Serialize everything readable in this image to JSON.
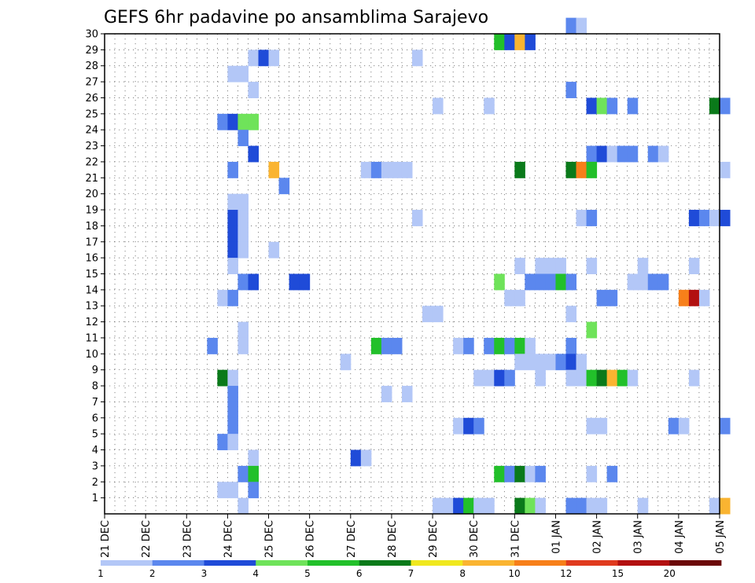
{
  "chart_data": {
    "type": "heatmap",
    "title": "GEFS 6hr padavine po ansamblima Sarajevo",
    "xlabel": "",
    "ylabel": "",
    "y_ticks": [
      "1",
      "2",
      "3",
      "4",
      "5",
      "6",
      "7",
      "8",
      "9",
      "10",
      "11",
      "12",
      "13",
      "14",
      "15",
      "16",
      "17",
      "18",
      "19",
      "20",
      "21",
      "22",
      "23",
      "24",
      "25",
      "26",
      "27",
      "28",
      "29",
      "30"
    ],
    "x_ticks": [
      "21 DEC",
      "22 DEC",
      "23 DEC",
      "24 DEC",
      "25 DEC",
      "26 DEC",
      "27 DEC",
      "28 DEC",
      "29 DEC",
      "30 DEC",
      "31 DEC",
      "01 JAN",
      "02 JAN",
      "03 JAN",
      "04 JAN",
      "05 JAN"
    ],
    "x_range_steps": [
      0,
      60
    ],
    "steps_per_day": 4,
    "y_range": [
      0,
      30
    ],
    "grid": true,
    "colorbar": {
      "levels": [
        "1",
        "2",
        "3",
        "4",
        "5",
        "6",
        "7",
        "8",
        "10",
        "12",
        "15",
        "20"
      ],
      "colors": [
        "#b3c7f7",
        "#5b87ee",
        "#1f4bd8",
        "#6fe35a",
        "#22c02a",
        "#0a7a1a",
        "#f0e81e",
        "#fab431",
        "#f77f1a",
        "#e03a1e",
        "#b21010",
        "#6b0808"
      ]
    },
    "cells": [
      [
        45,
        30,
        1
      ],
      [
        46,
        30,
        0
      ],
      [
        38,
        29,
        4
      ],
      [
        39,
        29,
        2
      ],
      [
        40,
        29,
        7
      ],
      [
        41,
        29,
        2
      ],
      [
        14,
        28,
        0
      ],
      [
        15,
        28,
        2
      ],
      [
        16,
        28,
        0
      ],
      [
        30,
        28,
        0
      ],
      [
        12,
        27,
        0
      ],
      [
        13,
        27,
        0
      ],
      [
        14,
        26,
        0
      ],
      [
        45,
        26,
        1
      ],
      [
        32,
        25,
        0
      ],
      [
        37,
        25,
        0
      ],
      [
        47,
        25,
        2
      ],
      [
        48,
        25,
        3
      ],
      [
        49,
        25,
        1
      ],
      [
        51,
        25,
        1
      ],
      [
        59,
        25,
        5
      ],
      [
        60,
        25,
        1
      ],
      [
        11,
        24,
        1
      ],
      [
        12,
        24,
        2
      ],
      [
        13,
        24,
        3
      ],
      [
        14,
        24,
        3
      ],
      [
        13,
        23,
        1
      ],
      [
        14,
        22,
        2
      ],
      [
        47,
        22,
        1
      ],
      [
        48,
        22,
        2
      ],
      [
        49,
        22,
        0
      ],
      [
        50,
        22,
        1
      ],
      [
        51,
        22,
        1
      ],
      [
        53,
        22,
        1
      ],
      [
        54,
        22,
        0
      ],
      [
        12,
        21,
        1
      ],
      [
        16,
        21,
        7
      ],
      [
        25,
        21,
        0
      ],
      [
        26,
        21,
        1
      ],
      [
        27,
        21,
        0
      ],
      [
        28,
        21,
        0
      ],
      [
        29,
        21,
        0
      ],
      [
        40,
        21,
        5
      ],
      [
        45,
        21,
        5
      ],
      [
        46,
        21,
        8
      ],
      [
        47,
        21,
        4
      ],
      [
        60,
        21,
        0
      ],
      [
        17,
        20,
        1
      ],
      [
        12,
        19,
        0
      ],
      [
        13,
        19,
        0
      ],
      [
        12,
        18,
        2
      ],
      [
        13,
        18,
        0
      ],
      [
        30,
        18,
        0
      ],
      [
        46,
        18,
        0
      ],
      [
        47,
        18,
        1
      ],
      [
        57,
        18,
        2
      ],
      [
        58,
        18,
        1
      ],
      [
        59,
        18,
        0
      ],
      [
        60,
        18,
        2
      ],
      [
        12,
        17,
        2
      ],
      [
        13,
        17,
        0
      ],
      [
        12,
        16,
        2
      ],
      [
        13,
        16,
        0
      ],
      [
        16,
        16,
        0
      ],
      [
        12,
        15,
        0
      ],
      [
        40,
        15,
        0
      ],
      [
        42,
        15,
        0
      ],
      [
        43,
        15,
        0
      ],
      [
        44,
        15,
        0
      ],
      [
        47,
        15,
        0
      ],
      [
        52,
        15,
        0
      ],
      [
        57,
        15,
        0
      ],
      [
        13,
        14,
        1
      ],
      [
        14,
        14,
        2
      ],
      [
        18,
        14,
        2
      ],
      [
        19,
        14,
        2
      ],
      [
        38,
        14,
        3
      ],
      [
        41,
        14,
        1
      ],
      [
        42,
        14,
        1
      ],
      [
        43,
        14,
        1
      ],
      [
        44,
        14,
        4
      ],
      [
        45,
        14,
        1
      ],
      [
        51,
        14,
        0
      ],
      [
        52,
        14,
        0
      ],
      [
        53,
        14,
        1
      ],
      [
        54,
        14,
        1
      ],
      [
        11,
        13,
        0
      ],
      [
        12,
        13,
        1
      ],
      [
        39,
        13,
        0
      ],
      [
        40,
        13,
        0
      ],
      [
        48,
        13,
        1
      ],
      [
        49,
        13,
        1
      ],
      [
        56,
        13,
        8
      ],
      [
        57,
        13,
        10
      ],
      [
        58,
        13,
        0
      ],
      [
        31,
        12,
        0
      ],
      [
        32,
        12,
        0
      ],
      [
        45,
        12,
        0
      ],
      [
        13,
        11,
        0
      ],
      [
        47,
        11,
        3
      ],
      [
        10,
        10,
        1
      ],
      [
        13,
        10,
        0
      ],
      [
        26,
        10,
        4
      ],
      [
        27,
        10,
        1
      ],
      [
        28,
        10,
        1
      ],
      [
        34,
        10,
        0
      ],
      [
        35,
        10,
        1
      ],
      [
        37,
        10,
        1
      ],
      [
        38,
        10,
        4
      ],
      [
        39,
        10,
        1
      ],
      [
        40,
        10,
        4
      ],
      [
        41,
        10,
        0
      ],
      [
        45,
        10,
        1
      ],
      [
        23,
        9,
        0
      ],
      [
        40,
        9,
        0
      ],
      [
        41,
        9,
        0
      ],
      [
        42,
        9,
        0
      ],
      [
        43,
        9,
        0
      ],
      [
        44,
        9,
        1
      ],
      [
        45,
        9,
        2
      ],
      [
        46,
        9,
        0
      ],
      [
        11,
        8,
        5
      ],
      [
        12,
        8,
        0
      ],
      [
        36,
        8,
        0
      ],
      [
        37,
        8,
        0
      ],
      [
        38,
        8,
        2
      ],
      [
        39,
        8,
        1
      ],
      [
        42,
        8,
        0
      ],
      [
        45,
        8,
        0
      ],
      [
        46,
        8,
        0
      ],
      [
        47,
        8,
        4
      ],
      [
        48,
        8,
        5
      ],
      [
        49,
        8,
        7
      ],
      [
        50,
        8,
        4
      ],
      [
        51,
        8,
        0
      ],
      [
        57,
        8,
        0
      ],
      [
        12,
        7,
        1
      ],
      [
        27,
        7,
        0
      ],
      [
        29,
        7,
        0
      ],
      [
        12,
        6,
        1
      ],
      [
        12,
        5,
        1
      ],
      [
        34,
        5,
        0
      ],
      [
        35,
        5,
        2
      ],
      [
        36,
        5,
        1
      ],
      [
        47,
        5,
        0
      ],
      [
        48,
        5,
        0
      ],
      [
        55,
        5,
        1
      ],
      [
        56,
        5,
        0
      ],
      [
        60,
        5,
        1
      ],
      [
        11,
        4,
        1
      ],
      [
        12,
        4,
        0
      ],
      [
        14,
        3,
        0
      ],
      [
        24,
        3,
        2
      ],
      [
        25,
        3,
        0
      ],
      [
        13,
        2,
        1
      ],
      [
        14,
        2,
        4
      ],
      [
        38,
        2,
        4
      ],
      [
        39,
        2,
        1
      ],
      [
        40,
        2,
        5
      ],
      [
        41,
        2,
        0
      ],
      [
        42,
        2,
        1
      ],
      [
        47,
        2,
        0
      ],
      [
        49,
        2,
        1
      ],
      [
        11,
        1,
        0
      ],
      [
        12,
        1,
        0
      ],
      [
        14,
        1,
        1
      ],
      [
        13,
        0,
        0
      ],
      [
        32,
        0,
        0
      ],
      [
        33,
        0,
        0
      ],
      [
        34,
        0,
        2
      ],
      [
        35,
        0,
        4
      ],
      [
        36,
        0,
        0
      ],
      [
        37,
        0,
        0
      ],
      [
        40,
        0,
        5
      ],
      [
        41,
        0,
        3
      ],
      [
        42,
        0,
        0
      ],
      [
        45,
        0,
        1
      ],
      [
        46,
        0,
        1
      ],
      [
        47,
        0,
        0
      ],
      [
        48,
        0,
        0
      ],
      [
        52,
        0,
        0
      ],
      [
        59,
        0,
        0
      ],
      [
        60,
        0,
        7
      ]
    ]
  }
}
